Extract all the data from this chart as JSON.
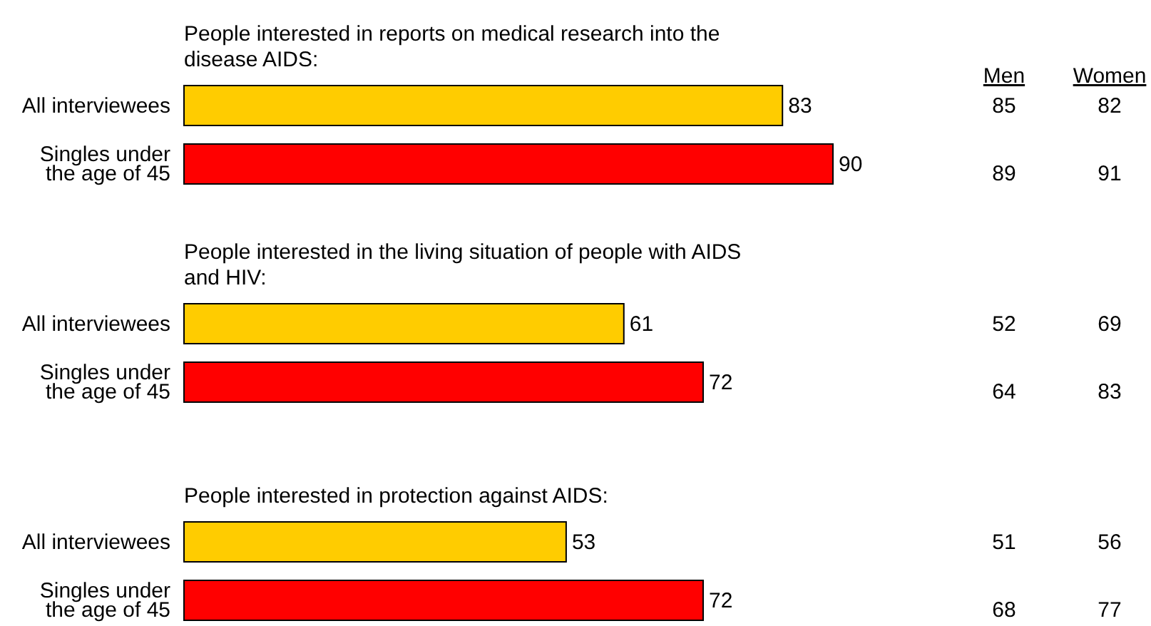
{
  "chart_data": [
    {
      "type": "bar",
      "orientation": "horizontal",
      "title": "People interested in reports on medical research into the disease AIDS:",
      "categories": [
        "All interviewees",
        "Singles under the age of 45"
      ],
      "values": [
        83,
        90
      ],
      "colors": [
        "#ffcc00",
        "#ff0000"
      ],
      "tick_labels": "y",
      "data_labels": true,
      "annotations": [
        "Men",
        "Women",
        "85",
        "82",
        "89",
        "91"
      ]
    },
    {
      "type": "bar",
      "orientation": "horizontal",
      "title": "People interested in the living situation of people with AIDS and HIV:",
      "categories": [
        "All interviewees",
        "Singles under the age of 45"
      ],
      "values": [
        61,
        72
      ],
      "colors": [
        "#ffcc00",
        "#ff0000"
      ],
      "tick_labels": "y",
      "data_labels": true,
      "annotations": [
        "52",
        "69",
        "64",
        "83"
      ]
    },
    {
      "type": "bar",
      "orientation": "horizontal",
      "title": "People interested in protection against AIDS:",
      "categories": [
        "All interviewees",
        "Singles under the age of 45"
      ],
      "values": [
        53,
        72
      ],
      "colors": [
        "#ffcc00",
        "#ff0000"
      ],
      "tick_labels": "y",
      "data_labels": true,
      "annotations": [
        "51",
        "56",
        "68",
        "77"
      ]
    }
  ]
}
